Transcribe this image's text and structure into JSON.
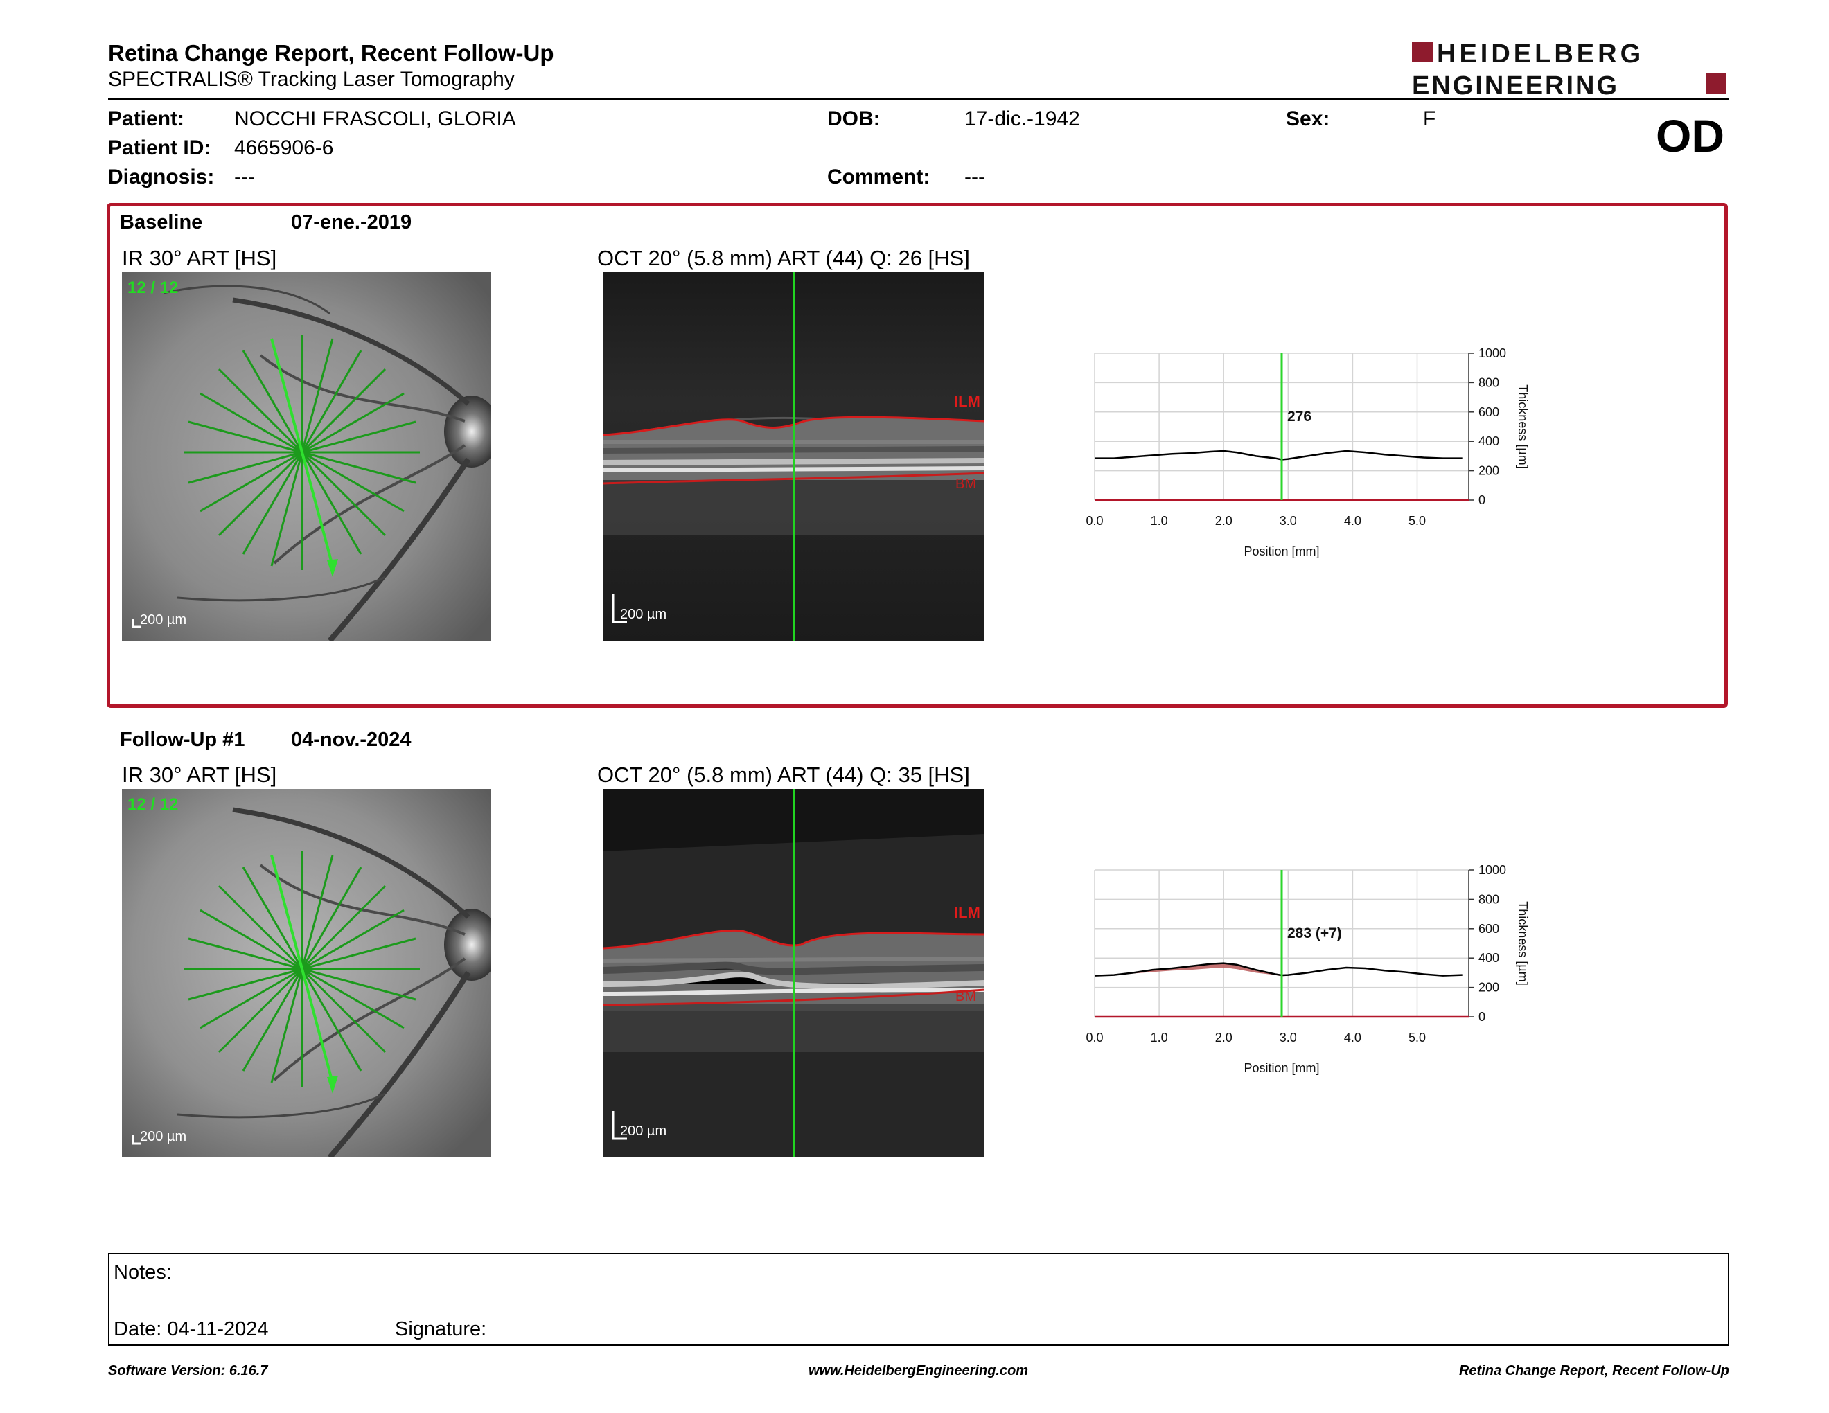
{
  "header": {
    "title": "Retina Change Report, Recent Follow-Up",
    "subtitle": "SPECTRALIS® Tracking Laser Tomography",
    "logo_line1": "HEIDELBERG",
    "logo_line2": "ENGINEERING",
    "eye": "OD"
  },
  "patient": {
    "name_label": "Patient:",
    "name": "NOCCHI FRASCOLI, GLORIA",
    "id_label": "Patient ID:",
    "id": "4665906-6",
    "diagnosis_label": "Diagnosis:",
    "diagnosis": "---",
    "dob_label": "DOB:",
    "dob": "17-dic.-1942",
    "comment_label": "Comment:",
    "comment": "---",
    "sex_label": "Sex:",
    "sex": "F"
  },
  "baseline": {
    "label": "Baseline",
    "date": "07-ene.-2019",
    "ir_title": "IR 30° ART [HS]",
    "oct_title": "OCT 20° (5.8 mm) ART (44) Q: 26 [HS]",
    "frame_counter": "12 / 12",
    "scale": "200 µm",
    "ilm": "ILM",
    "bm": "BM",
    "thickness_value": "276"
  },
  "followup": {
    "label": "Follow-Up #1",
    "date": "04-nov.-2024",
    "ir_title": "IR 30° ART [HS]",
    "oct_title": "OCT 20° (5.8 mm) ART (44) Q: 35 [HS]",
    "frame_counter": "12 / 12",
    "scale": "200 µm",
    "ilm": "ILM",
    "bm": "BM",
    "thickness_value": "283 (+7)"
  },
  "chart_data": [
    {
      "type": "line",
      "xlabel": "Position [mm]",
      "ylabel": "Thickness [µm]",
      "xlim": [
        0,
        5.8
      ],
      "ylim": [
        0,
        1000
      ],
      "x_ticks": [
        "0.0",
        "1.0",
        "2.0",
        "3.0",
        "4.0",
        "5.0"
      ],
      "y_ticks": [
        "0",
        "200",
        "400",
        "600",
        "800",
        "1000"
      ],
      "cursor_x": 2.9,
      "cursor_label": "276",
      "series": [
        {
          "x": [
            0,
            0.3,
            0.6,
            0.9,
            1.2,
            1.5,
            1.8,
            2.0,
            2.2,
            2.5,
            2.8,
            2.9,
            3.0,
            3.3,
            3.6,
            3.9,
            4.2,
            4.5,
            4.8,
            5.1,
            5.4,
            5.7
          ],
          "values": [
            285,
            285,
            295,
            305,
            315,
            320,
            330,
            335,
            325,
            300,
            285,
            276,
            280,
            300,
            320,
            335,
            325,
            310,
            300,
            290,
            285,
            285
          ]
        }
      ]
    },
    {
      "type": "line",
      "xlabel": "Position [mm]",
      "ylabel": "Thickness [µm]",
      "xlim": [
        0,
        5.8
      ],
      "ylim": [
        0,
        1000
      ],
      "x_ticks": [
        "0.0",
        "1.0",
        "2.0",
        "3.0",
        "4.0",
        "5.0"
      ],
      "y_ticks": [
        "0",
        "200",
        "400",
        "600",
        "800",
        "1000"
      ],
      "cursor_x": 2.9,
      "cursor_label": "283 (+7)",
      "baseline_values": [
        285,
        285,
        295,
        305,
        315,
        320,
        330,
        335,
        325,
        300,
        285,
        276,
        280,
        300,
        320,
        335,
        325,
        310,
        300,
        290,
        285,
        285
      ],
      "series": [
        {
          "x": [
            0,
            0.3,
            0.6,
            0.9,
            1.2,
            1.5,
            1.8,
            2.0,
            2.2,
            2.5,
            2.8,
            2.9,
            3.0,
            3.3,
            3.6,
            3.9,
            4.2,
            4.5,
            4.8,
            5.1,
            5.4,
            5.7
          ],
          "values": [
            280,
            285,
            300,
            320,
            330,
            345,
            360,
            365,
            355,
            320,
            290,
            283,
            285,
            300,
            320,
            335,
            330,
            315,
            305,
            290,
            280,
            285
          ]
        }
      ]
    }
  ],
  "notes": {
    "label": "Notes:",
    "date": "Date: 04-11-2024",
    "signature": "Signature:"
  },
  "footer": {
    "software": "Software Version: 6.16.7",
    "website": "www.HeidelbergEngineering.com",
    "report": "Retina Change Report, Recent Follow-Up"
  }
}
